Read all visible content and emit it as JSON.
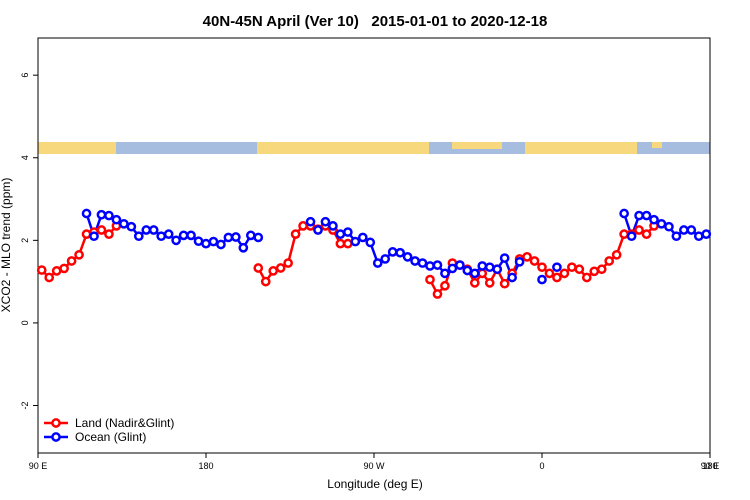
{
  "chart_data": {
    "type": "line",
    "title": "40N-45N April (Ver 10)   2015-01-01 to 2020-12-18",
    "xlabel": "Longitude (deg E)",
    "ylabel": "XCO2 - MLO trend (ppm)",
    "x": [
      92,
      96,
      100,
      104,
      108,
      112,
      116,
      120,
      124,
      128,
      132,
      136,
      140,
      144,
      148,
      152,
      156,
      160,
      164,
      168,
      172,
      176,
      180,
      184,
      188,
      192,
      196,
      200,
      204,
      208,
      212,
      216,
      220,
      224,
      228,
      232,
      236,
      240,
      244,
      248,
      252,
      256,
      260,
      264,
      268,
      272,
      276,
      280,
      284,
      288,
      292,
      296,
      300,
      304,
      308,
      312,
      316,
      320,
      324,
      328,
      332,
      336,
      340,
      344,
      348,
      352,
      356,
      360,
      364,
      368,
      372,
      376,
      380,
      384,
      388,
      392,
      396,
      400,
      404,
      408,
      412,
      416,
      420,
      424,
      428,
      432,
      436,
      440,
      444,
      448
    ],
    "series": [
      {
        "name": "Land (Nadir&Glint)",
        "color": "#ff0000",
        "values": [
          1.28,
          1.1,
          1.26,
          1.32,
          1.5,
          1.65,
          2.15,
          2.2,
          2.25,
          2.15,
          2.35,
          null,
          null,
          null,
          null,
          null,
          null,
          null,
          null,
          null,
          null,
          null,
          null,
          null,
          null,
          null,
          null,
          null,
          null,
          1.33,
          1.0,
          1.26,
          1.33,
          1.45,
          2.15,
          2.35,
          2.35,
          2.27,
          2.35,
          2.25,
          1.92,
          1.92,
          null,
          null,
          null,
          null,
          null,
          null,
          null,
          null,
          null,
          null,
          1.05,
          0.7,
          0.9,
          1.45,
          1.4,
          1.3,
          0.97,
          1.2,
          0.97,
          1.3,
          0.95,
          1.2,
          1.55,
          1.6,
          1.5,
          1.35,
          1.2,
          1.1,
          1.2,
          1.35,
          1.3,
          1.1,
          1.25,
          1.3,
          1.5,
          1.65,
          2.15,
          2.15,
          2.25,
          2.15,
          2.35,
          null,
          null,
          null,
          null,
          null,
          null,
          null
        ]
      },
      {
        "name": "Ocean (Glint)",
        "color": "#0000ff",
        "values": [
          null,
          null,
          null,
          null,
          null,
          null,
          2.65,
          2.1,
          2.62,
          2.6,
          2.5,
          2.4,
          2.33,
          2.1,
          2.25,
          2.25,
          2.1,
          2.15,
          2.0,
          2.12,
          2.12,
          1.98,
          1.92,
          1.97,
          1.9,
          2.07,
          2.08,
          1.82,
          2.12,
          2.07,
          null,
          null,
          null,
          null,
          null,
          null,
          2.45,
          2.25,
          2.45,
          2.35,
          2.15,
          2.2,
          1.97,
          2.07,
          1.95,
          1.45,
          1.55,
          1.72,
          1.7,
          1.6,
          1.5,
          1.45,
          1.38,
          1.4,
          1.2,
          1.32,
          1.4,
          1.27,
          1.2,
          1.38,
          1.35,
          1.3,
          1.57,
          1.1,
          1.48,
          null,
          null,
          1.05,
          null,
          1.35,
          null,
          null,
          null,
          null,
          null,
          null,
          null,
          null,
          2.65,
          2.1,
          2.6,
          2.6,
          2.5,
          2.4,
          2.33,
          2.1,
          2.25,
          2.25,
          2.1,
          2.15
        ]
      }
    ],
    "xlim": [
      90,
      450
    ],
    "xticks": [
      {
        "value": 90,
        "label": "90 E"
      },
      180,
      {
        "value": 270,
        "label": "90 W"
      },
      {
        "value": 360,
        "label": "0"
      },
      {
        "value": 450,
        "label": "90 E"
      },
      {
        "value": 540,
        "label": "180"
      }
    ],
    "ylim": [
      -3.15,
      6.9
    ],
    "yticks": [
      -2,
      0,
      2,
      4,
      6
    ],
    "legend": "lower left"
  }
}
